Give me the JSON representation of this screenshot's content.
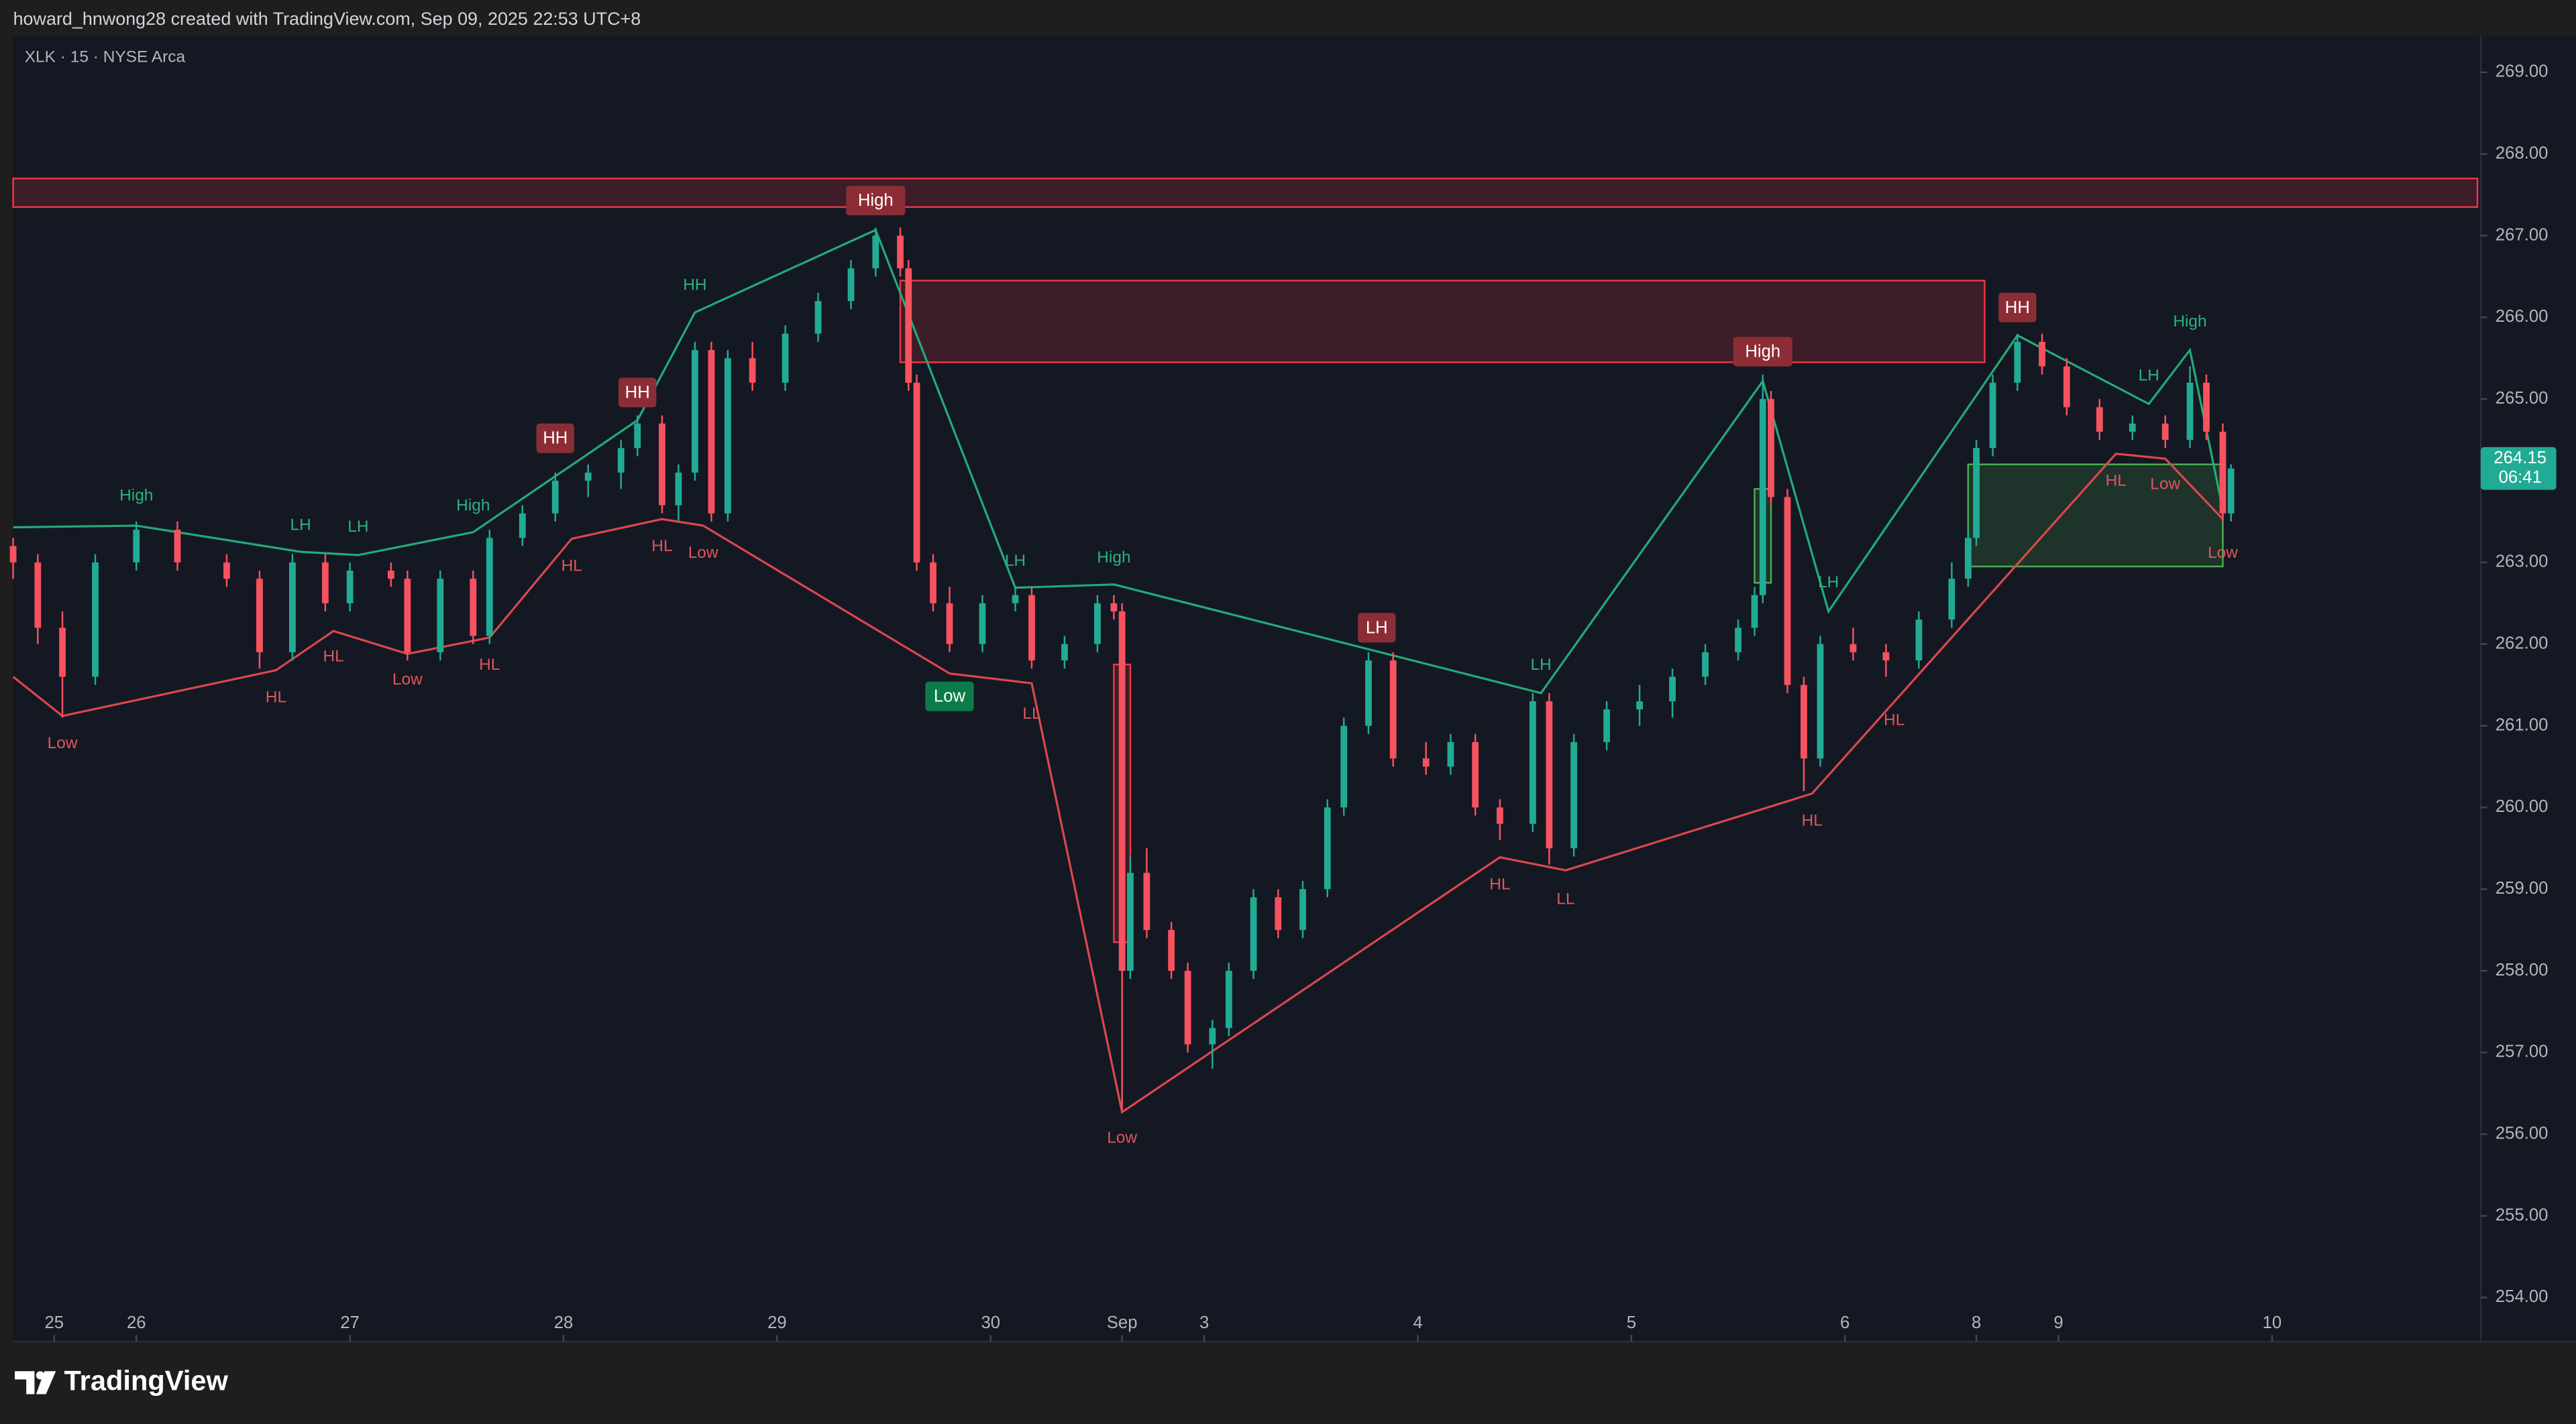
{
  "header": {
    "credit": "howard_hnwong28 created with TradingView.com, Sep 09, 2025 22:53 UTC+8"
  },
  "footer": {
    "brand": "TradingView"
  },
  "chart_data": {
    "type": "candlestick",
    "title": "XLK · 15 · NYSE Arca",
    "up_color": "#22ab94",
    "down_color": "#f7525f",
    "xlim": [
      0,
      300
    ],
    "ylim": [
      253.46,
      269.44
    ],
    "grid": false,
    "xticks": [
      {
        "value": 5,
        "label": "25"
      },
      {
        "value": 15,
        "label": "26"
      },
      {
        "value": 41,
        "label": "27"
      },
      {
        "value": 67,
        "label": "28"
      },
      {
        "value": 93,
        "label": "29"
      },
      {
        "value": 119,
        "label": "30"
      },
      {
        "value": 135,
        "label": "Sep"
      },
      {
        "value": 145,
        "label": "3"
      },
      {
        "value": 171,
        "label": "4"
      },
      {
        "value": 197,
        "label": "5"
      },
      {
        "value": 223,
        "label": "6"
      },
      {
        "value": 239,
        "label": "8"
      },
      {
        "value": 249,
        "label": "9"
      },
      {
        "value": 275,
        "label": "10"
      }
    ],
    "yticks": [
      {
        "value": 254,
        "label": "254.00"
      },
      {
        "value": 255,
        "label": "255.00"
      },
      {
        "value": 256,
        "label": "256.00"
      },
      {
        "value": 257,
        "label": "257.00"
      },
      {
        "value": 258,
        "label": "258.00"
      },
      {
        "value": 259,
        "label": "259.00"
      },
      {
        "value": 260,
        "label": "260.00"
      },
      {
        "value": 261,
        "label": "261.00"
      },
      {
        "value": 262,
        "label": "262.00"
      },
      {
        "value": 263,
        "label": "263.00"
      },
      {
        "value": 264,
        "label": "264.00"
      },
      {
        "value": 265,
        "label": "265.00"
      },
      {
        "value": 266,
        "label": "266.00"
      },
      {
        "value": 267,
        "label": "267.00"
      },
      {
        "value": 268,
        "label": "268.00"
      },
      {
        "value": 269,
        "label": "269.00"
      }
    ],
    "x": [
      0,
      3,
      6,
      10,
      15,
      20,
      26,
      30,
      34,
      38,
      41,
      46,
      48,
      52,
      56,
      58,
      62,
      66,
      70,
      74,
      76,
      79,
      81,
      83,
      85,
      87,
      90,
      94,
      98,
      102,
      105,
      108,
      109,
      110,
      112,
      114,
      118,
      122,
      124,
      128,
      132,
      134,
      135,
      136,
      138,
      141,
      143,
      146,
      148,
      151,
      154,
      157,
      160,
      162,
      165,
      168,
      172,
      175,
      178,
      181,
      185,
      187,
      190,
      194,
      198,
      202,
      206,
      210,
      212,
      213,
      214,
      216,
      218,
      220,
      224,
      228,
      232,
      236,
      238,
      239,
      241,
      244,
      247,
      250,
      254,
      258,
      262,
      265,
      267,
      269,
      270
    ],
    "open": [
      263.2,
      263.0,
      262.2,
      261.6,
      263.0,
      263.4,
      263.0,
      262.8,
      261.9,
      263.0,
      262.5,
      262.9,
      262.8,
      261.9,
      262.8,
      262.1,
      263.3,
      263.6,
      264.0,
      264.1,
      264.4,
      264.7,
      263.7,
      264.1,
      265.6,
      263.6,
      265.5,
      265.2,
      265.8,
      266.2,
      266.6,
      267.0,
      266.6,
      265.2,
      263.0,
      262.5,
      262.0,
      262.5,
      262.6,
      261.8,
      262.0,
      262.5,
      262.4,
      258.0,
      259.2,
      258.5,
      258.0,
      257.1,
      257.3,
      258.0,
      258.9,
      258.5,
      259.0,
      260.0,
      261.0,
      261.8,
      260.6,
      260.5,
      260.8,
      260.0,
      259.8,
      261.3,
      259.5,
      260.8,
      261.2,
      261.3,
      261.6,
      261.9,
      262.2,
      262.6,
      265.0,
      263.8,
      261.5,
      260.6,
      262.0,
      261.9,
      261.8,
      262.3,
      262.8,
      263.3,
      264.4,
      265.2,
      265.7,
      265.4,
      264.9,
      264.6,
      264.7,
      264.5,
      265.2,
      264.6,
      263.6
    ],
    "high": [
      263.3,
      263.1,
      262.4,
      263.1,
      263.5,
      263.5,
      263.1,
      262.9,
      263.1,
      263.1,
      263.0,
      263.0,
      262.9,
      262.9,
      262.9,
      263.4,
      263.7,
      264.1,
      264.2,
      264.5,
      264.8,
      264.8,
      264.2,
      265.7,
      265.7,
      265.6,
      265.7,
      265.9,
      266.3,
      266.7,
      267.1,
      267.1,
      266.7,
      265.3,
      263.1,
      262.7,
      262.6,
      262.7,
      262.7,
      262.1,
      262.6,
      262.6,
      262.5,
      259.4,
      259.5,
      258.6,
      258.1,
      257.4,
      258.1,
      259.0,
      259.0,
      259.1,
      260.1,
      261.1,
      261.9,
      261.9,
      260.8,
      260.9,
      260.9,
      260.1,
      261.4,
      261.4,
      260.9,
      261.3,
      261.5,
      261.7,
      262.0,
      262.3,
      262.7,
      265.3,
      265.1,
      263.9,
      261.6,
      262.1,
      262.2,
      262.0,
      262.4,
      263.0,
      263.4,
      264.5,
      265.3,
      265.8,
      265.8,
      265.5,
      265.0,
      264.8,
      264.8,
      265.4,
      265.3,
      264.7,
      264.2
    ],
    "low": [
      262.8,
      262.0,
      261.1,
      261.5,
      262.9,
      262.9,
      262.7,
      261.7,
      261.8,
      262.4,
      262.4,
      262.7,
      261.8,
      261.8,
      262.0,
      262.0,
      263.2,
      263.5,
      263.8,
      263.9,
      264.3,
      263.6,
      263.5,
      264.0,
      263.5,
      263.5,
      265.1,
      265.1,
      265.7,
      266.1,
      266.5,
      266.5,
      265.1,
      262.9,
      262.4,
      261.9,
      261.9,
      262.4,
      261.7,
      261.7,
      261.9,
      262.3,
      256.3,
      257.9,
      258.4,
      257.9,
      257.0,
      256.8,
      257.2,
      257.9,
      258.4,
      258.4,
      258.9,
      259.9,
      260.9,
      260.5,
      260.4,
      260.4,
      259.9,
      259.6,
      259.7,
      259.3,
      259.4,
      260.7,
      261.0,
      261.1,
      261.5,
      261.8,
      262.1,
      262.5,
      263.7,
      261.4,
      260.2,
      260.5,
      261.8,
      261.6,
      261.7,
      262.2,
      262.7,
      263.2,
      264.3,
      265.1,
      265.3,
      264.8,
      264.5,
      264.5,
      264.4,
      264.4,
      264.5,
      263.5,
      263.5
    ],
    "close": [
      263.0,
      262.2,
      261.6,
      263.0,
      263.4,
      263.0,
      262.8,
      261.9,
      263.0,
      262.5,
      262.9,
      262.8,
      261.9,
      262.8,
      262.1,
      263.3,
      263.6,
      264.0,
      264.1,
      264.4,
      264.7,
      263.7,
      264.1,
      265.6,
      263.6,
      265.5,
      265.2,
      265.8,
      266.2,
      266.6,
      267.0,
      266.6,
      265.2,
      263.0,
      262.5,
      262.0,
      262.5,
      262.6,
      261.8,
      262.0,
      262.5,
      262.4,
      258.0,
      259.2,
      258.5,
      258.0,
      257.1,
      257.3,
      258.0,
      258.9,
      258.5,
      259.0,
      260.0,
      261.0,
      261.8,
      260.6,
      260.5,
      260.8,
      260.0,
      259.8,
      261.3,
      259.5,
      260.8,
      261.2,
      261.3,
      261.6,
      261.9,
      262.2,
      262.6,
      265.0,
      263.8,
      261.5,
      260.6,
      262.0,
      261.9,
      261.8,
      262.3,
      262.8,
      263.3,
      264.4,
      265.2,
      265.7,
      265.4,
      264.9,
      264.6,
      264.7,
      264.5,
      265.2,
      264.6,
      263.6,
      264.15
    ],
    "lines": [
      {
        "color": "#22ab7a",
        "x": [
          0,
          15,
          35,
          42,
          56,
          76,
          83,
          105,
          122,
          134,
          186,
          213,
          221,
          244,
          260,
          265,
          269
        ],
        "y": [
          263.43,
          263.45,
          263.13,
          263.09,
          263.37,
          264.74,
          266.06,
          267.07,
          262.69,
          262.73,
          261.4,
          265.22,
          262.4,
          265.78,
          264.94,
          265.6,
          263.65
        ]
      },
      {
        "color": "#d9484d",
        "x": [
          0,
          6,
          32,
          39,
          48,
          58,
          68,
          79,
          84,
          114,
          124,
          135,
          181,
          189,
          219,
          256,
          262,
          269
        ],
        "y": [
          261.6,
          261.12,
          261.68,
          262.16,
          261.88,
          262.08,
          263.29,
          263.53,
          263.45,
          261.64,
          261.52,
          256.27,
          259.39,
          259.23,
          260.17,
          264.33,
          264.27,
          263.53
        ]
      }
    ],
    "zones": [
      {
        "x": [
          0,
          300
        ],
        "y": [
          267.35,
          267.7
        ],
        "color": "#f23645"
      },
      {
        "x": [
          108,
          240
        ],
        "y": [
          265.45,
          266.45
        ],
        "color": "#f23645"
      },
      {
        "x": [
          238,
          269
        ],
        "y": [
          262.95,
          264.2
        ],
        "color": "#4caf50"
      },
      {
        "x": [
          212,
          214
        ],
        "y": [
          262.75,
          263.9
        ],
        "color": "#4caf50"
      },
      {
        "x": [
          134,
          136
        ],
        "y": [
          258.35,
          261.75
        ],
        "color": "#f23645"
      }
    ],
    "annotations": [
      {
        "text": "High",
        "x": 105,
        "y": 267.43,
        "color": "#8c2d35",
        "badge": true
      },
      {
        "text": "HH",
        "x": 66,
        "y": 264.52,
        "color": "#8c2d35",
        "badge": true
      },
      {
        "text": "HH",
        "x": 76,
        "y": 265.08,
        "color": "#8c2d35",
        "badge": true
      },
      {
        "text": "LH",
        "x": 166,
        "y": 262.2,
        "color": "#8c2d35",
        "badge": true
      },
      {
        "text": "High",
        "x": 213,
        "y": 265.58,
        "color": "#8c2d35",
        "badge": true
      },
      {
        "text": "HH",
        "x": 244,
        "y": 266.12,
        "color": "#8c2d35",
        "badge": true
      },
      {
        "text": "Low",
        "x": 114,
        "y": 261.36,
        "color": "#0c7b4a",
        "badge": true
      },
      {
        "text": "High",
        "x": 15,
        "y": 263.81,
        "color": "#2bb37e",
        "badge": false
      },
      {
        "text": "LH",
        "x": 35,
        "y": 263.45,
        "color": "#2bb37e",
        "badge": false
      },
      {
        "text": "LH",
        "x": 42,
        "y": 263.43,
        "color": "#2bb37e",
        "badge": false
      },
      {
        "text": "High",
        "x": 56,
        "y": 263.69,
        "color": "#2bb37e",
        "badge": false
      },
      {
        "text": "HH",
        "x": 83,
        "y": 266.39,
        "color": "#2bb37e",
        "badge": false
      },
      {
        "text": "LH",
        "x": 122,
        "y": 263.01,
        "color": "#2bb37e",
        "badge": false
      },
      {
        "text": "High",
        "x": 134,
        "y": 263.05,
        "color": "#2bb37e",
        "badge": false
      },
      {
        "text": "LH",
        "x": 186,
        "y": 261.74,
        "color": "#2bb37e",
        "badge": false
      },
      {
        "text": "LH",
        "x": 221,
        "y": 262.75,
        "color": "#2bb37e",
        "badge": false
      },
      {
        "text": "LH",
        "x": 260,
        "y": 265.28,
        "color": "#2bb37e",
        "badge": false
      },
      {
        "text": "High",
        "x": 265,
        "y": 265.94,
        "color": "#2bb37e",
        "badge": false
      },
      {
        "text": "Low",
        "x": 6,
        "y": 260.78,
        "color": "#e0555a",
        "badge": false
      },
      {
        "text": "HL",
        "x": 32,
        "y": 261.34,
        "color": "#e0555a",
        "badge": false
      },
      {
        "text": "HL",
        "x": 39,
        "y": 261.84,
        "color": "#e0555a",
        "badge": false
      },
      {
        "text": "Low",
        "x": 48,
        "y": 261.56,
        "color": "#e0555a",
        "badge": false
      },
      {
        "text": "HL",
        "x": 58,
        "y": 261.74,
        "color": "#e0555a",
        "badge": false
      },
      {
        "text": "HL",
        "x": 68,
        "y": 262.95,
        "color": "#e0555a",
        "badge": false
      },
      {
        "text": "HL",
        "x": 79,
        "y": 263.19,
        "color": "#e0555a",
        "badge": false
      },
      {
        "text": "Low",
        "x": 84,
        "y": 263.11,
        "color": "#e0555a",
        "badge": false
      },
      {
        "text": "LL",
        "x": 124,
        "y": 261.14,
        "color": "#e0555a",
        "badge": false
      },
      {
        "text": "Low",
        "x": 135,
        "y": 255.95,
        "color": "#e0555a",
        "badge": false
      },
      {
        "text": "HL",
        "x": 181,
        "y": 259.05,
        "color": "#e0555a",
        "badge": false
      },
      {
        "text": "LL",
        "x": 189,
        "y": 258.87,
        "color": "#e0555a",
        "badge": false
      },
      {
        "text": "HL",
        "x": 219,
        "y": 259.83,
        "color": "#e0555a",
        "badge": false
      },
      {
        "text": "HL",
        "x": 229,
        "y": 261.06,
        "color": "#e0555a",
        "badge": false
      },
      {
        "text": "HL",
        "x": 256,
        "y": 263.99,
        "color": "#e0555a",
        "badge": false
      },
      {
        "text": "Low",
        "x": 262,
        "y": 263.95,
        "color": "#e0555a",
        "badge": false
      },
      {
        "text": "Low",
        "x": 269,
        "y": 263.11,
        "color": "#e0555a",
        "badge": false
      }
    ],
    "last_price": 264.15,
    "countdown": "06:41",
    "last_price_color": "#22ab94"
  }
}
